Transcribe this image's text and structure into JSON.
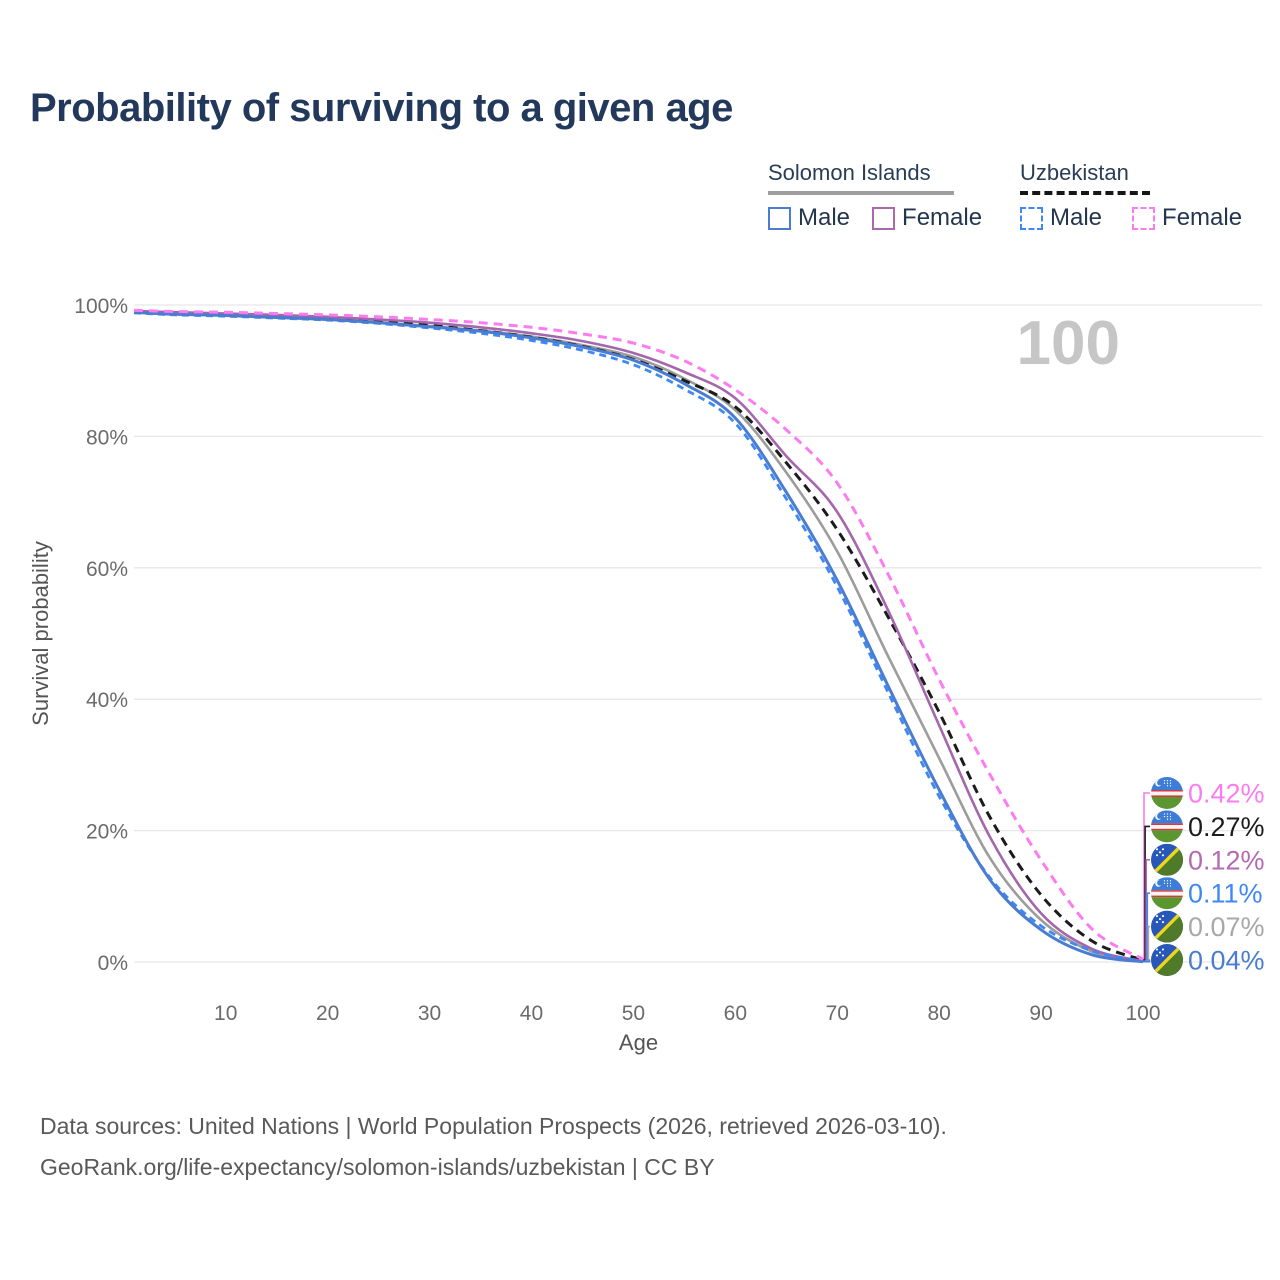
{
  "title": "Probability of surviving to a given age",
  "watermark_age_label": "100",
  "legend": {
    "groups": [
      {
        "title": "Solomon Islands",
        "line_style": "solid",
        "items": [
          {
            "label": "Male",
            "color": "#4a7dd1"
          },
          {
            "label": "Female",
            "color": "#a96aaa"
          }
        ]
      },
      {
        "title": "Uzbekistan",
        "line_style": "dashed",
        "items": [
          {
            "label": "Male",
            "color": "#3f87f5"
          },
          {
            "label": "Female",
            "color": "#fb7cf0"
          }
        ]
      }
    ]
  },
  "chart_data": {
    "type": "line",
    "title": "Probability of surviving to a given age",
    "xlabel": "Age",
    "ylabel": "Survival probability",
    "xlim": [
      1,
      100
    ],
    "ylim": [
      0,
      100
    ],
    "grid": "horizontal",
    "legend_position": "top-right",
    "x": [
      1,
      5,
      10,
      15,
      20,
      25,
      30,
      35,
      40,
      45,
      50,
      55,
      60,
      65,
      70,
      75,
      80,
      85,
      90,
      95,
      100
    ],
    "x_ticks": [
      {
        "value": 10,
        "label": "10"
      },
      {
        "value": 20,
        "label": "20"
      },
      {
        "value": 30,
        "label": "30"
      },
      {
        "value": 40,
        "label": "40"
      },
      {
        "value": 50,
        "label": "50"
      },
      {
        "value": 60,
        "label": "60"
      },
      {
        "value": 70,
        "label": "70"
      },
      {
        "value": 80,
        "label": "80"
      },
      {
        "value": 90,
        "label": "90"
      },
      {
        "value": 100,
        "label": "100"
      }
    ],
    "y_ticks": [
      {
        "value": 0,
        "label": "0%"
      },
      {
        "value": 20,
        "label": "20%"
      },
      {
        "value": 40,
        "label": "40%"
      },
      {
        "value": 60,
        "label": "60%"
      },
      {
        "value": 80,
        "label": "80%"
      },
      {
        "value": 100,
        "label": "100%"
      }
    ],
    "series": [
      {
        "key": "solomon-islands-male",
        "name": "Solomon Islands — Male",
        "country": "Solomon Islands",
        "sex": "Male",
        "color": "#4a7dd1",
        "dash": null,
        "width": 3,
        "values": [
          98.9,
          98.6,
          98.4,
          98.1,
          97.8,
          97.3,
          96.7,
          96.0,
          95.0,
          93.6,
          91.6,
          88.0,
          82.8,
          71.5,
          58.1,
          42.0,
          26.2,
          12.5,
          4.9,
          1.1,
          0.04
        ]
      },
      {
        "key": "solomon-islands-female",
        "name": "Solomon Islands — Female",
        "country": "Solomon Islands",
        "sex": "Female",
        "color": "#a467ab",
        "dash": null,
        "width": 2.6,
        "values": [
          99.1,
          98.9,
          98.7,
          98.5,
          98.2,
          97.8,
          97.3,
          96.6,
          95.7,
          94.5,
          92.7,
          89.8,
          85.8,
          77.0,
          68.5,
          53.5,
          36.0,
          19.0,
          7.4,
          2.0,
          0.12
        ]
      },
      {
        "key": "solomon-islands-both",
        "name": "Solomon Islands — Both sexes",
        "country": "Solomon Islands",
        "sex": "Both",
        "color": "#9c9c9c",
        "dash": null,
        "width": 2.6,
        "values": [
          98.9,
          98.7,
          98.5,
          98.2,
          97.9,
          97.4,
          96.8,
          96.1,
          95.2,
          93.9,
          92.1,
          88.8,
          84.0,
          74.5,
          62.5,
          46.5,
          31.0,
          15.8,
          6.4,
          1.6,
          0.07
        ]
      },
      {
        "key": "uzbekistan-male",
        "name": "Uzbekistan — Male",
        "country": "Uzbekistan",
        "sex": "Male",
        "color": "#3f87f5",
        "dash": "7 5",
        "width": 2.8,
        "values": [
          98.8,
          98.5,
          98.3,
          98.0,
          97.7,
          97.2,
          96.5,
          95.7,
          94.6,
          93.1,
          90.9,
          87.2,
          82.0,
          70.5,
          57.1,
          41.0,
          25.2,
          12.8,
          5.5,
          1.7,
          0.11
        ]
      },
      {
        "key": "uzbekistan-female",
        "name": "Uzbekistan — Female",
        "country": "Uzbekistan",
        "sex": "Female",
        "color": "#fb7cf0",
        "dash": "9 6",
        "width": 3,
        "values": [
          99.2,
          99.0,
          98.9,
          98.7,
          98.5,
          98.2,
          97.8,
          97.3,
          96.6,
          95.6,
          94.2,
          91.5,
          87.1,
          81.0,
          72.9,
          59.0,
          43.0,
          28.5,
          15.5,
          5.0,
          0.42
        ]
      },
      {
        "key": "uzbekistan-both",
        "name": "Uzbekistan — Both sexes",
        "country": "Uzbekistan",
        "sex": "Both",
        "color": "#1b1b1b",
        "dash": "9 6",
        "width": 3,
        "values": [
          98.9,
          98.7,
          98.5,
          98.2,
          97.9,
          97.5,
          96.9,
          96.1,
          95.1,
          93.7,
          91.7,
          88.5,
          84.5,
          76.0,
          65.8,
          52.5,
          38.0,
          22.0,
          10.2,
          3.2,
          0.27
        ]
      }
    ]
  },
  "end_labels": [
    {
      "series": 4,
      "text": "0.42%",
      "color": "#fb7cf0",
      "flag": "uzbekistan"
    },
    {
      "series": 5,
      "text": "0.27%",
      "color": "#1c1c1c",
      "flag": "uzbekistan"
    },
    {
      "series": 1,
      "text": "0.12%",
      "color": "#b36ab3",
      "flag": "solomon-islands"
    },
    {
      "series": 3,
      "text": "0.11%",
      "color": "#3f87f5",
      "flag": "uzbekistan"
    },
    {
      "series": 2,
      "text": "0.07%",
      "color": "#a8a8a8",
      "flag": "solomon-islands"
    },
    {
      "series": 0,
      "text": "0.04%",
      "color": "#4a7dd1",
      "flag": "solomon-islands"
    }
  ],
  "footer": {
    "line1": "Data sources: United Nations | World Population Prospects (2026, retrieved 2026-03-10).",
    "line2": "GeoRank.org/life-expectancy/solomon-islands/uzbekistan | CC BY"
  }
}
